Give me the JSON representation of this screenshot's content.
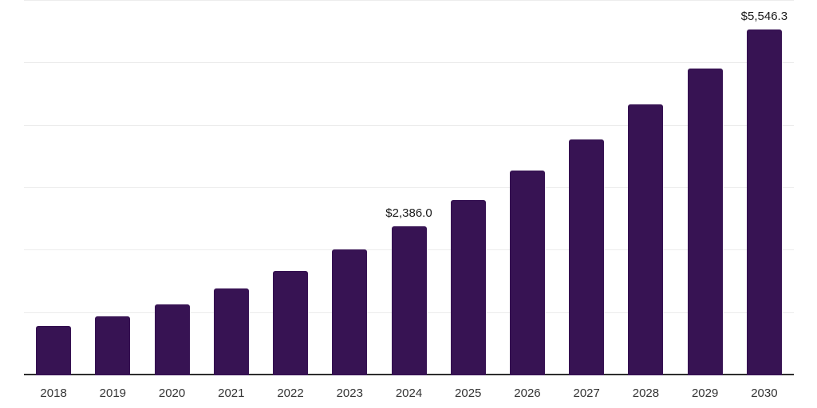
{
  "chart_data": {
    "type": "bar",
    "title": "",
    "xlabel": "",
    "ylabel": "",
    "categories": [
      "2018",
      "2019",
      "2020",
      "2021",
      "2022",
      "2023",
      "2024",
      "2025",
      "2026",
      "2027",
      "2028",
      "2029",
      "2030"
    ],
    "values": [
      795,
      945,
      1140,
      1390,
      1670,
      2015,
      2386.0,
      2805,
      3280,
      3785,
      4335,
      4920,
      5546.3
    ],
    "data_labels": [
      {
        "category": "2024",
        "text": "$2,386.0"
      },
      {
        "category": "2030",
        "text": "$5,546.3"
      }
    ],
    "ylim": [
      0,
      6000
    ],
    "gridline_interval": 1000,
    "grid": "horizontal-only",
    "legend": "none",
    "y_axis_tick_labels_visible": false,
    "colors": {
      "bar": "#371353",
      "axis_line": "#2e2e2e",
      "gridline": "#ececec",
      "tick_label": "#333333",
      "data_label": "#1a1a1a",
      "background": "#ffffff"
    }
  }
}
